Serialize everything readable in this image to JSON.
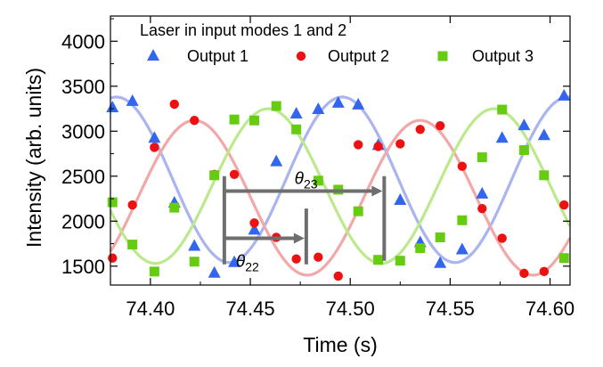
{
  "chart_data": {
    "type": "scatter",
    "xlabel": "Time (s)",
    "ylabel": "Intensity (arb. units)",
    "xlim": [
      74.38,
      74.61
    ],
    "ylim": [
      1290,
      4280
    ],
    "x_ticks": [
      "74.40",
      "74.45",
      "74.50",
      "74.55",
      "74.60"
    ],
    "x_tick_values": [
      74.4,
      74.45,
      74.5,
      74.55,
      74.6
    ],
    "y_ticks": [
      "1500",
      "2000",
      "2500",
      "3000",
      "3500",
      "4000"
    ],
    "y_tick_values": [
      1500,
      2000,
      2500,
      3000,
      3500,
      4000
    ],
    "legend": {
      "title": "Laser in input modes 1 and 2",
      "placement": "top"
    },
    "series": [
      {
        "name": "Output 1",
        "marker": "triangle",
        "color": "#3366ee",
        "fit_color": "#aab4f0",
        "fit": {
          "mean": 2460,
          "amplitude": 920,
          "period": 0.113,
          "peak_x": 74.496
        },
        "points": [
          [
            74.381,
            3260
          ],
          [
            74.391,
            3330
          ],
          [
            74.402,
            2920
          ],
          [
            74.412,
            2200
          ],
          [
            74.422,
            1720
          ],
          [
            74.432,
            1420
          ],
          [
            74.442,
            1540
          ],
          [
            74.452,
            1900
          ],
          [
            74.463,
            2660
          ],
          [
            74.473,
            3190
          ],
          [
            74.484,
            3240
          ],
          [
            74.494,
            3310
          ],
          [
            74.504,
            3290
          ],
          [
            74.514,
            2840
          ],
          [
            74.525,
            2230
          ],
          [
            74.535,
            1760
          ],
          [
            74.545,
            1530
          ],
          [
            74.556,
            1680
          ],
          [
            74.566,
            2300
          ],
          [
            74.576,
            2920
          ],
          [
            74.587,
            3060
          ],
          [
            74.597,
            2950
          ],
          [
            74.607,
            3390
          ]
        ]
      },
      {
        "name": "Output 2",
        "marker": "circle",
        "color": "#ee1111",
        "fit_color": "#f2a8a8",
        "fit": {
          "mean": 2260,
          "amplitude": 860,
          "period": 0.113,
          "peak_x": 74.422
        },
        "points": [
          [
            74.381,
            1590
          ],
          [
            74.391,
            2180
          ],
          [
            74.402,
            2820
          ],
          [
            74.412,
            3300
          ],
          [
            74.422,
            3120
          ],
          [
            74.432,
            2520
          ],
          [
            74.442,
            2520
          ],
          [
            74.452,
            1980
          ],
          [
            74.463,
            1820
          ],
          [
            74.473,
            1580
          ],
          [
            74.484,
            1600
          ],
          [
            74.494,
            1390
          ],
          [
            74.504,
            2850
          ],
          [
            74.514,
            2830
          ],
          [
            74.525,
            2860
          ],
          [
            74.535,
            3020
          ],
          [
            74.545,
            3060
          ],
          [
            74.556,
            2610
          ],
          [
            74.566,
            2140
          ],
          [
            74.576,
            1810
          ],
          [
            74.587,
            1420
          ],
          [
            74.597,
            1440
          ],
          [
            74.607,
            2180
          ]
        ]
      },
      {
        "name": "Output 3",
        "marker": "square",
        "color": "#66cc11",
        "fit_color": "#bce98c",
        "fit": {
          "mean": 2390,
          "amplitude": 860,
          "period": 0.113,
          "peak_x": 74.459
        },
        "points": [
          [
            74.381,
            2210
          ],
          [
            74.391,
            1740
          ],
          [
            74.402,
            1440
          ],
          [
            74.412,
            2150
          ],
          [
            74.422,
            1550
          ],
          [
            74.432,
            2510
          ],
          [
            74.442,
            3130
          ],
          [
            74.452,
            3120
          ],
          [
            74.463,
            3280
          ],
          [
            74.473,
            3020
          ],
          [
            74.484,
            2450
          ],
          [
            74.494,
            2350
          ],
          [
            74.504,
            2110
          ],
          [
            74.514,
            1570
          ],
          [
            74.525,
            1560
          ],
          [
            74.535,
            1700
          ],
          [
            74.545,
            1820
          ],
          [
            74.556,
            2010
          ],
          [
            74.566,
            2710
          ],
          [
            74.576,
            3240
          ],
          [
            74.587,
            2790
          ],
          [
            74.597,
            2510
          ],
          [
            74.607,
            1590
          ]
        ]
      }
    ],
    "annotations": [
      {
        "symbol": "θ",
        "sub": "23",
        "from_x": 74.437,
        "to_x": 74.517,
        "arrow_y": 2335,
        "ref_top_y": 2500,
        "ref_bottom_y": 1560
      },
      {
        "symbol": "θ",
        "sub": "22",
        "from_x": 74.437,
        "to_x": 74.478,
        "arrow_y": 1810,
        "ref_top_y": 2140,
        "ref_bottom_y": 1520
      }
    ]
  }
}
